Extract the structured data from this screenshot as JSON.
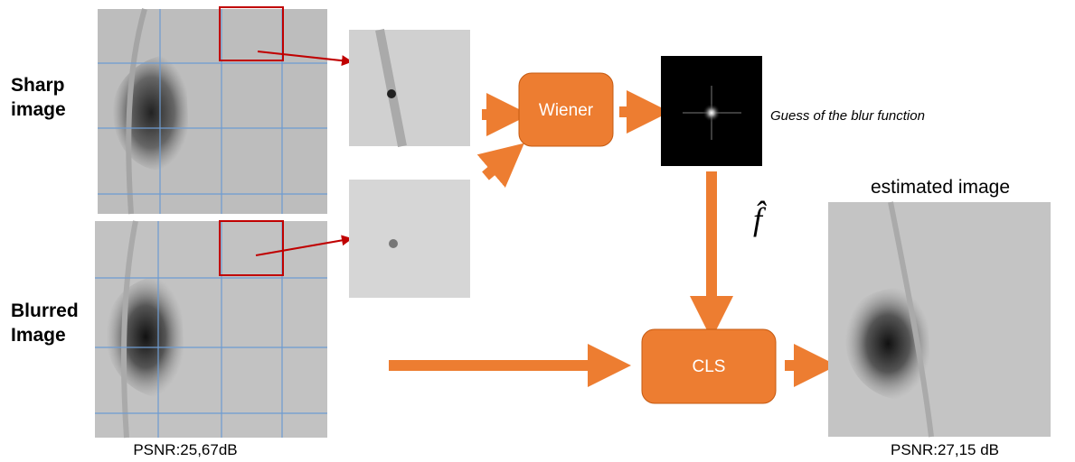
{
  "inputs": {
    "sharp_label": [
      "Sharp",
      "image"
    ],
    "blurred_label": [
      "Blurred",
      "Image"
    ],
    "input_psnr": "PSNR:25,67dB"
  },
  "steps": {
    "wiener": "Wiener",
    "kernel_caption": "Guess of the blur function",
    "kernel_symbol": "f̂",
    "cls": "CLS"
  },
  "output": {
    "title": "estimated image",
    "psnr": "PSNR:27,15 dB"
  }
}
